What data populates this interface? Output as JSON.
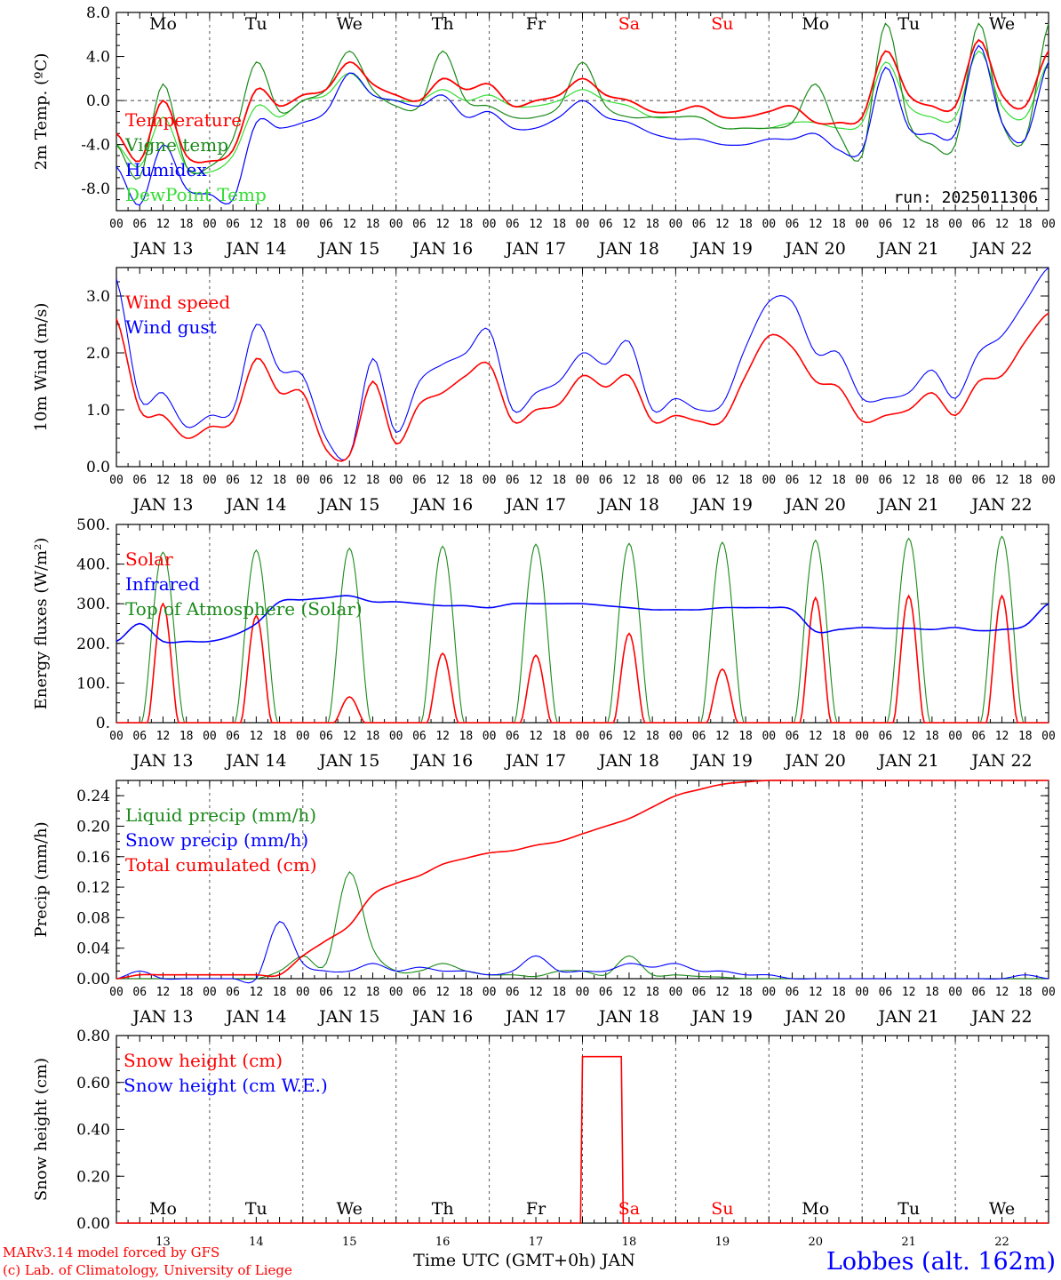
{
  "colors": {
    "red": "#ff0000",
    "green": "#1a8a1a",
    "blue": "#0000ff",
    "lightgreen": "#33dd33",
    "axis": "#000000",
    "grid": "#555555",
    "weekend": "#ff0000",
    "station": "#0000ff",
    "footer": "#ff0000"
  },
  "days": [
    "Mo",
    "Tu",
    "We",
    "Th",
    "Fr",
    "Sa",
    "Su",
    "Mo",
    "Tu",
    "We"
  ],
  "weekend_index": [
    5,
    6
  ],
  "date_labels": [
    "JAN 13",
    "JAN 14",
    "JAN 15",
    "JAN 16",
    "JAN 17",
    "JAN 18",
    "JAN 19",
    "JAN 20",
    "JAN 21",
    "JAN 22"
  ],
  "hour_labels": [
    "00",
    "06",
    "12",
    "18"
  ],
  "bottom_day_numbers": [
    "13",
    "14",
    "15",
    "16",
    "17",
    "18",
    "19",
    "20",
    "21",
    "22"
  ],
  "x_title": "Time UTC (GMT+0h) JAN",
  "footer": {
    "line1": "MARv3.14 model forced by GFS",
    "line2": "(c) Lab. of Climatology, University of Liege"
  },
  "station": "Lobbes (alt. 162m)",
  "run_label": "run: 2025011306",
  "chart_data": [
    {
      "id": "temp",
      "type": "line",
      "ylabel": "2m Temp. (ºC)",
      "ylim": [
        -10,
        8
      ],
      "yticks": [
        -8,
        -4,
        0,
        4,
        8
      ],
      "ytick_labels": [
        "-8.0",
        "-4.0",
        "0.0",
        "4.0",
        "8.0"
      ],
      "x_hours": [
        0,
        6,
        12,
        18,
        24,
        30,
        36,
        42,
        48,
        54,
        60,
        66,
        72,
        78,
        84,
        90,
        96,
        102,
        108,
        114,
        120,
        126,
        132,
        138,
        144,
        150,
        156,
        162,
        168,
        174,
        180,
        186,
        192,
        198,
        204,
        210,
        216,
        222,
        228,
        234,
        240
      ],
      "series": [
        {
          "name": "Temperature",
          "color": "red",
          "values": [
            -3.0,
            -5.5,
            0.0,
            -5.0,
            -5.5,
            -4.5,
            1.0,
            -0.5,
            0.5,
            1.0,
            3.5,
            1.5,
            0.5,
            0.0,
            2.0,
            1.0,
            1.5,
            -0.5,
            0.0,
            0.5,
            2.0,
            0.5,
            0.0,
            -1.0,
            -1.0,
            -0.5,
            -1.5,
            -1.5,
            -1.0,
            -0.5,
            -2.0,
            -2.0,
            -1.5,
            4.5,
            0.5,
            -0.5,
            -0.5,
            5.5,
            0.5,
            -0.5,
            4.5
          ]
        },
        {
          "name": "Vigne temp",
          "color": "green",
          "values": [
            -4.0,
            -7.0,
            1.5,
            -6.0,
            -6.0,
            -3.5,
            3.5,
            -1.0,
            0.0,
            1.0,
            4.5,
            1.0,
            -0.5,
            -0.5,
            4.5,
            0.0,
            -0.5,
            -1.5,
            -1.5,
            -0.5,
            3.5,
            -0.5,
            -1.5,
            -1.5,
            -1.5,
            -1.5,
            -2.5,
            -2.5,
            -2.5,
            -2.0,
            1.5,
            -3.0,
            -5.0,
            7.0,
            -2.0,
            -4.0,
            -4.0,
            7.0,
            -2.0,
            -3.5,
            7.0
          ]
        },
        {
          "name": "Humidex",
          "color": "blue",
          "values": [
            -6.0,
            -9.5,
            -4.0,
            -8.0,
            -8.5,
            -9.0,
            -2.0,
            -2.5,
            -2.0,
            -1.0,
            2.5,
            0.5,
            0.0,
            -0.5,
            0.5,
            -1.5,
            -1.0,
            -2.5,
            -2.5,
            -1.5,
            0.0,
            -1.5,
            -2.0,
            -3.0,
            -3.5,
            -3.5,
            -4.0,
            -4.0,
            -3.5,
            -3.5,
            -3.0,
            -4.5,
            -4.5,
            3.0,
            -2.5,
            -3.0,
            -3.0,
            5.0,
            -2.0,
            -3.5,
            3.5
          ]
        },
        {
          "name": "DewPoint Temp",
          "color": "lightgreen",
          "values": [
            -4.0,
            -6.0,
            -1.5,
            -6.0,
            -6.5,
            -5.0,
            -0.5,
            -1.5,
            0.0,
            0.5,
            2.5,
            0.5,
            0.0,
            0.0,
            1.0,
            0.0,
            0.5,
            -0.5,
            -0.5,
            0.0,
            1.0,
            0.0,
            -0.5,
            -1.5,
            -1.5,
            -1.5,
            -2.5,
            -2.5,
            -2.5,
            -2.0,
            -2.0,
            -2.5,
            -2.0,
            3.5,
            -0.5,
            -1.5,
            -1.5,
            4.5,
            -0.5,
            -1.5,
            3.5
          ]
        }
      ],
      "annotation": "run: 2025011306"
    },
    {
      "id": "wind",
      "type": "line",
      "ylabel": "10m Wind (m/s)",
      "ylim": [
        0,
        3.5
      ],
      "yticks": [
        0,
        1,
        2,
        3
      ],
      "ytick_labels": [
        "0.0",
        "1.0",
        "2.0",
        "3.0"
      ],
      "x_hours": [
        0,
        6,
        12,
        18,
        24,
        30,
        36,
        42,
        48,
        54,
        60,
        66,
        72,
        78,
        84,
        90,
        96,
        102,
        108,
        114,
        120,
        126,
        132,
        138,
        144,
        150,
        156,
        162,
        168,
        174,
        180,
        186,
        192,
        198,
        204,
        210,
        216,
        222,
        228,
        234,
        240
      ],
      "series": [
        {
          "name": "Wind speed",
          "color": "red",
          "values": [
            2.6,
            1.0,
            0.9,
            0.5,
            0.7,
            0.8,
            1.9,
            1.3,
            1.3,
            0.3,
            0.2,
            1.5,
            0.4,
            1.1,
            1.3,
            1.6,
            1.8,
            0.8,
            1.0,
            1.1,
            1.6,
            1.4,
            1.6,
            0.8,
            0.9,
            0.8,
            0.8,
            1.6,
            2.3,
            2.1,
            1.5,
            1.4,
            0.8,
            0.9,
            1.0,
            1.3,
            0.9,
            1.5,
            1.6,
            2.2,
            2.7
          ]
        },
        {
          "name": "Wind gust",
          "color": "blue",
          "values": [
            3.3,
            1.2,
            1.3,
            0.7,
            0.9,
            1.0,
            2.5,
            1.7,
            1.6,
            0.5,
            0.2,
            1.9,
            0.6,
            1.5,
            1.8,
            2.0,
            2.4,
            1.0,
            1.3,
            1.5,
            2.0,
            1.8,
            2.2,
            1.0,
            1.2,
            1.0,
            1.1,
            2.1,
            2.9,
            2.9,
            2.0,
            2.0,
            1.2,
            1.2,
            1.3,
            1.7,
            1.2,
            2.0,
            2.3,
            2.9,
            3.5
          ]
        }
      ]
    },
    {
      "id": "energy",
      "type": "line",
      "ylabel": "Energy fluxes (W/m²)",
      "ylim": [
        0,
        500
      ],
      "yticks": [
        0,
        100,
        200,
        300,
        400,
        500
      ],
      "ytick_labels": [
        "0.",
        "100.",
        "200.",
        "300.",
        "400.",
        "500."
      ],
      "solar_peaks": [
        300,
        270,
        65,
        175,
        170,
        225,
        135,
        315,
        320,
        320
      ],
      "toa_peaks": [
        430,
        435,
        440,
        445,
        450,
        452,
        455,
        460,
        465,
        470
      ],
      "x_hours": [
        0,
        6,
        12,
        18,
        24,
        30,
        36,
        42,
        48,
        54,
        60,
        66,
        72,
        78,
        84,
        90,
        96,
        102,
        108,
        114,
        120,
        126,
        132,
        138,
        144,
        150,
        156,
        162,
        168,
        174,
        180,
        186,
        192,
        198,
        204,
        210,
        216,
        222,
        228,
        234,
        240
      ],
      "infrared": [
        205,
        250,
        205,
        205,
        205,
        220,
        250,
        305,
        310,
        315,
        320,
        305,
        305,
        300,
        295,
        295,
        290,
        300,
        300,
        300,
        300,
        295,
        290,
        285,
        285,
        285,
        290,
        290,
        290,
        285,
        230,
        235,
        240,
        238,
        238,
        235,
        240,
        232,
        235,
        245,
        300
      ],
      "series": [
        {
          "name": "Solar",
          "color": "red"
        },
        {
          "name": "Infrared",
          "color": "blue"
        },
        {
          "name": "Top of Atmosphere (Solar)",
          "color": "green"
        }
      ]
    },
    {
      "id": "precip",
      "type": "line",
      "ylabel": "Precip (mm/h)",
      "ylim": [
        0,
        0.26
      ],
      "yticks": [
        0,
        0.04,
        0.08,
        0.12,
        0.16,
        0.2,
        0.24
      ],
      "ytick_labels": [
        "0.00",
        "0.04",
        "0.08",
        "0.12",
        "0.16",
        "0.20",
        "0.24"
      ],
      "x_hours": [
        0,
        6,
        12,
        18,
        24,
        30,
        36,
        42,
        48,
        54,
        60,
        66,
        72,
        78,
        84,
        90,
        96,
        102,
        108,
        114,
        120,
        126,
        132,
        138,
        144,
        150,
        156,
        162,
        168,
        174,
        180,
        186,
        192,
        198,
        204,
        210,
        216,
        222,
        228,
        234,
        240
      ],
      "series": [
        {
          "name": "Liquid precip (mm/h)",
          "color": "green",
          "values": [
            0,
            0,
            0,
            0,
            0,
            0,
            0,
            0.01,
            0.03,
            0.02,
            0.14,
            0.04,
            0.01,
            0.01,
            0.02,
            0.01,
            0.005,
            0.005,
            0.003,
            0.01,
            0.01,
            0.005,
            0.03,
            0.005,
            0.005,
            0.003,
            0.002,
            0,
            0,
            0,
            0,
            0,
            0,
            0,
            0,
            0,
            0,
            0,
            0,
            0,
            0
          ]
        },
        {
          "name": "Snow precip (mm/h)",
          "color": "blue",
          "values": [
            0,
            0.01,
            0,
            0,
            0,
            0,
            0,
            0.075,
            0.02,
            0.01,
            0.01,
            0.02,
            0.01,
            0.015,
            0.01,
            0.01,
            0.005,
            0.01,
            0.03,
            0.01,
            0.01,
            0.01,
            0.02,
            0.015,
            0.02,
            0.01,
            0.01,
            0.005,
            0.005,
            0,
            0,
            0,
            0,
            0,
            0,
            0,
            0,
            0,
            0,
            0.005,
            0
          ]
        },
        {
          "name": "Total cumulated (cm)",
          "color": "red",
          "values": [
            0,
            0.005,
            0.005,
            0.005,
            0.005,
            0.005,
            0.005,
            0.005,
            0.03,
            0.05,
            0.07,
            0.11,
            0.125,
            0.135,
            0.15,
            0.158,
            0.165,
            0.168,
            0.175,
            0.18,
            0.19,
            0.2,
            0.21,
            0.225,
            0.24,
            0.248,
            0.255,
            0.258,
            0.26,
            0.26,
            0.26,
            0.26,
            0.26,
            0.26,
            0.26,
            0.26,
            0.26,
            0.26,
            0.26,
            0.26,
            0.26
          ]
        }
      ]
    },
    {
      "id": "snow",
      "type": "line",
      "ylabel": "Snow height (cm)",
      "ylim": [
        0,
        0.8
      ],
      "yticks": [
        0,
        0.2,
        0.4,
        0.6,
        0.8
      ],
      "ytick_labels": [
        "0.00",
        "0.20",
        "0.40",
        "0.60",
        "0.80"
      ],
      "series": [
        {
          "name": "Snow height (cm)",
          "color": "red",
          "points": [
            [
              0,
              0
            ],
            [
              119.5,
              0
            ],
            [
              120,
              0.71
            ],
            [
              130,
              0.71
            ],
            [
              130.5,
              0
            ],
            [
              240,
              0
            ]
          ]
        },
        {
          "name": "Snow height (cm W.E.)",
          "color": "blue"
        }
      ]
    }
  ]
}
